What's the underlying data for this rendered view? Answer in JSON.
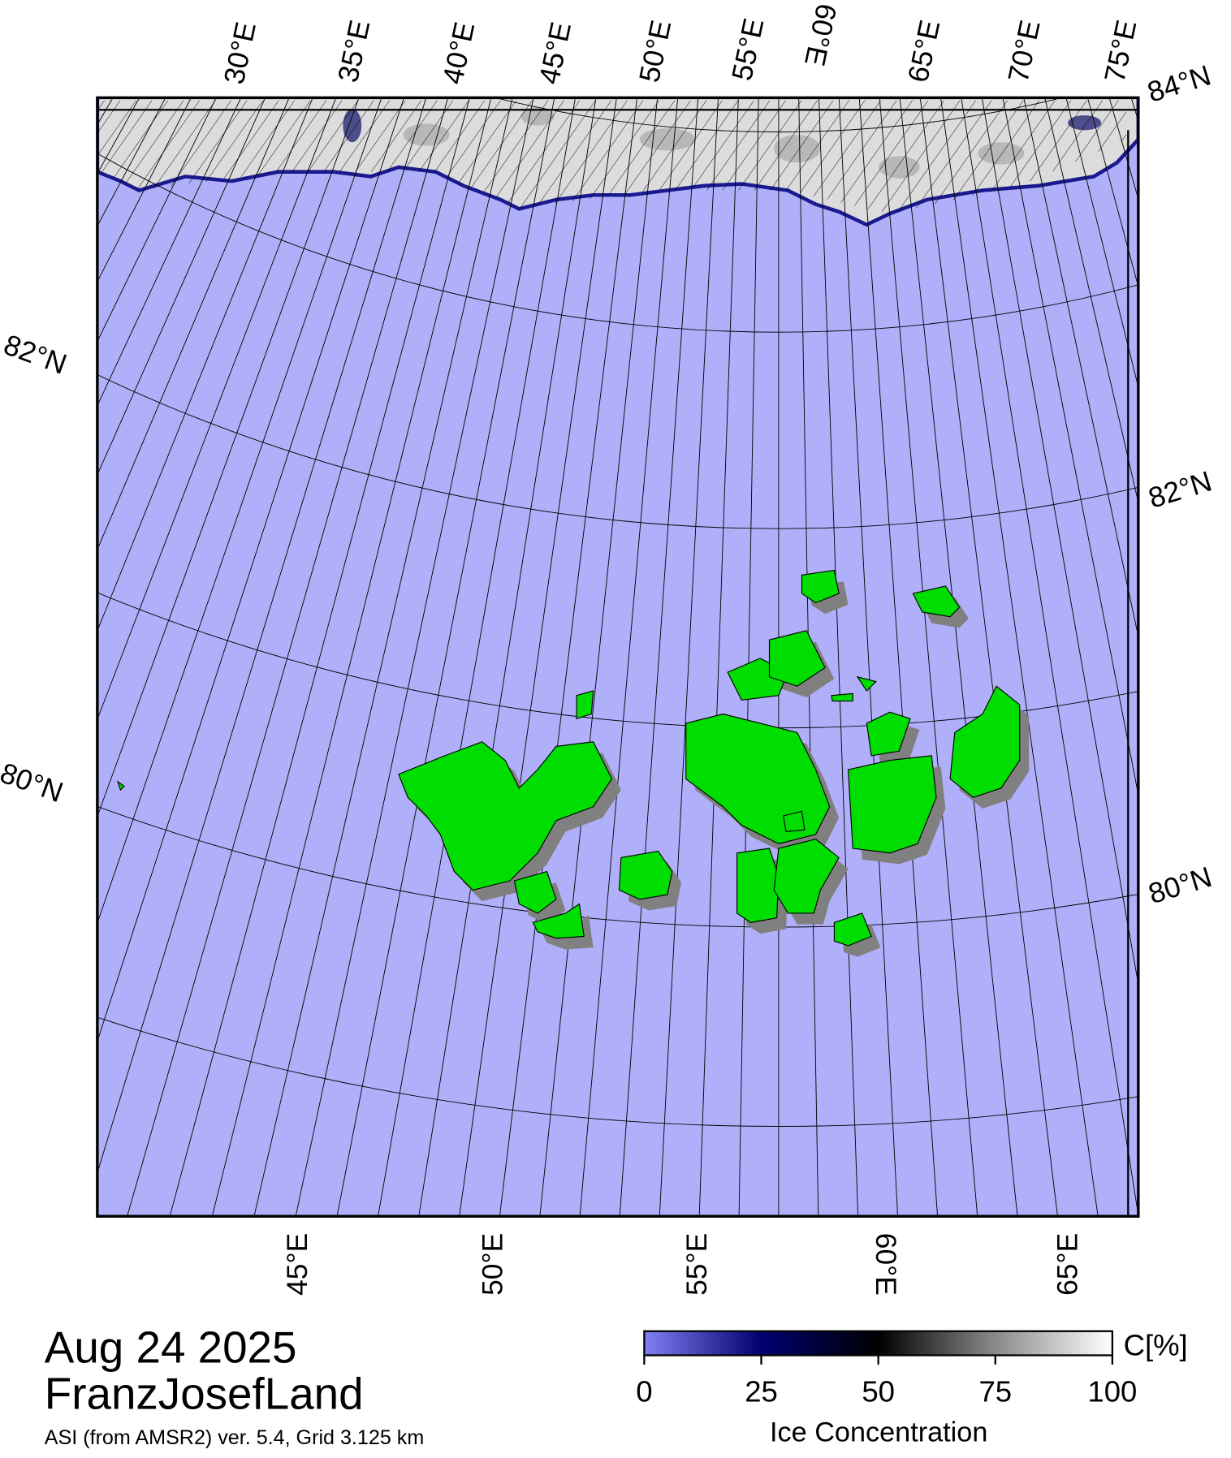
{
  "header": {
    "date": "Aug 24 2025",
    "region": "FranzJosefLand",
    "source": "ASI (from AMSR2) ver. 5.4,  Grid 3.125 km"
  },
  "map": {
    "top_labels": [
      "30°E",
      "35°E",
      "40°E",
      "45°E",
      "50°E",
      "55°E",
      "60°E",
      "65°E",
      "70°E",
      "75°E"
    ],
    "bottom_labels": [
      "45°E",
      "50°E",
      "55°E",
      "60°E",
      "65°E"
    ],
    "left_labels": [
      "82°N",
      "80°N"
    ],
    "right_labels": [
      "84°N",
      "82°N",
      "80°N"
    ]
  },
  "colorbar": {
    "label": "Ice Concentration",
    "unit": "C[%]",
    "range": [
      0,
      100
    ],
    "ticks": [
      0,
      25,
      50,
      75,
      100
    ]
  }
}
